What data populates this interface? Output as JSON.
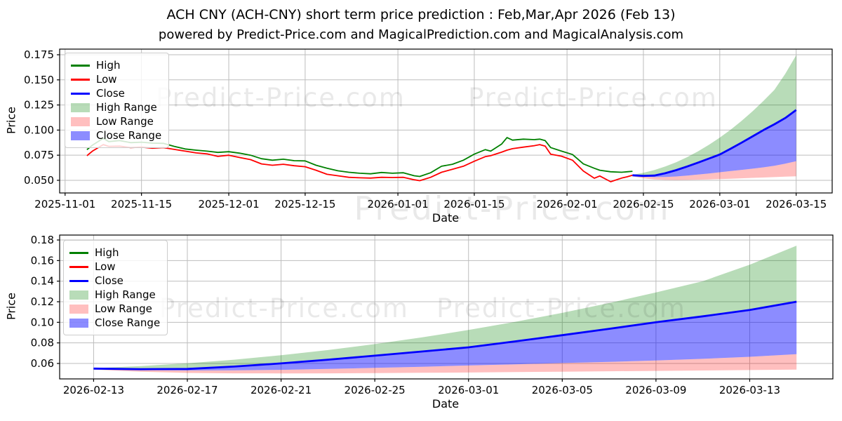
{
  "title": "ACH CNY (ACH-CNY) short term price prediction : Feb,Mar,Apr 2026 (Feb 13)",
  "subtitle": "powered by Predict-Price.com and MagicalPrediction.com and MagicalAnalysis.com",
  "watermark_text": "Predict-Price.com",
  "colors": {
    "high": "#008000",
    "low": "#ff0000",
    "close": "#0000ff",
    "high_range": "rgba(0,128,0,0.28)",
    "low_range": "rgba(255,0,0,0.25)",
    "close_range": "rgba(0,0,255,0.45)",
    "grid": "#bdbdbd",
    "spine": "#000000",
    "tick_text": "#000000",
    "watermark": "rgba(0,0,0,0.085)"
  },
  "legend": {
    "items": [
      {
        "label": "High",
        "swatch": "line",
        "color_key": "high"
      },
      {
        "label": "Low",
        "swatch": "line",
        "color_key": "low"
      },
      {
        "label": "Close",
        "swatch": "line",
        "color_key": "close"
      },
      {
        "label": "High Range",
        "swatch": "patch",
        "color_key": "high_range"
      },
      {
        "label": "Low Range",
        "swatch": "patch",
        "color_key": "low_range"
      },
      {
        "label": "Close Range",
        "swatch": "patch",
        "color_key": "close_range"
      }
    ]
  },
  "chart_data": [
    {
      "id": "top",
      "type": "line",
      "role": "price history with forecast fan",
      "xlabel": "Date",
      "ylabel": "Price",
      "x_unit": "days since 2025-11-01",
      "xlim": [
        -1.0,
        140.6
      ],
      "ylim": [
        0.0374,
        0.1806
      ],
      "grid": true,
      "x_ticks": {
        "labels": [
          "2025-11-01",
          "2025-11-15",
          "2025-12-01",
          "2025-12-15",
          "2026-01-01",
          "2026-01-15",
          "2026-02-01",
          "2026-02-15",
          "2026-03-01",
          "2026-03-15"
        ],
        "pos": [
          0,
          14,
          30,
          44,
          61,
          75,
          92,
          106,
          120,
          134
        ]
      },
      "y_ticks": {
        "labels": [
          "0.050",
          "0.075",
          "0.100",
          "0.125",
          "0.150",
          "0.175"
        ],
        "values": [
          0.05,
          0.075,
          0.1,
          0.125,
          0.15,
          0.175
        ]
      },
      "forecast_day_offset": 104,
      "series": {
        "high": {
          "name": "High",
          "days": [
            4,
            5,
            7,
            8,
            10,
            12,
            14,
            16,
            18,
            20,
            22,
            24,
            26,
            28,
            30,
            32,
            34,
            36,
            38,
            40,
            42,
            44,
            46,
            48,
            50,
            52,
            54,
            56,
            58,
            60,
            62,
            64,
            65,
            67,
            69,
            71,
            73,
            75,
            77,
            78,
            80,
            81,
            82,
            84,
            86,
            87,
            88,
            89,
            91,
            93,
            95,
            97,
            98,
            100,
            102,
            103,
            104
          ],
          "values": [
            0.0805,
            0.085,
            0.0918,
            0.0885,
            0.0895,
            0.0875,
            0.088,
            0.087,
            0.0868,
            0.0838,
            0.0812,
            0.08,
            0.079,
            0.0778,
            0.0785,
            0.077,
            0.075,
            0.0715,
            0.07,
            0.071,
            0.0695,
            0.0693,
            0.065,
            0.062,
            0.0595,
            0.058,
            0.057,
            0.0565,
            0.0578,
            0.057,
            0.0575,
            0.0545,
            0.0538,
            0.0575,
            0.064,
            0.066,
            0.07,
            0.076,
            0.0805,
            0.079,
            0.086,
            0.0925,
            0.09,
            0.091,
            0.0905,
            0.091,
            0.0895,
            0.0826,
            0.079,
            0.0757,
            0.0663,
            0.062,
            0.06,
            0.0585,
            0.058,
            0.0585,
            0.059
          ]
        },
        "low": {
          "name": "Low",
          "days": [
            4,
            5,
            7,
            8,
            10,
            12,
            14,
            16,
            18,
            20,
            22,
            24,
            26,
            28,
            30,
            32,
            34,
            36,
            38,
            40,
            42,
            44,
            46,
            48,
            50,
            52,
            54,
            56,
            58,
            60,
            62,
            64,
            65,
            67,
            69,
            71,
            73,
            75,
            77,
            78,
            80,
            81,
            82,
            84,
            86,
            87,
            88,
            89,
            91,
            93,
            95,
            97,
            98,
            100,
            102,
            103,
            104
          ],
          "values": [
            0.0745,
            0.079,
            0.0855,
            0.0838,
            0.084,
            0.0825,
            0.083,
            0.082,
            0.0825,
            0.0808,
            0.079,
            0.0773,
            0.0763,
            0.0738,
            0.075,
            0.0727,
            0.0706,
            0.0663,
            0.065,
            0.066,
            0.0645,
            0.0635,
            0.06,
            0.056,
            0.0545,
            0.053,
            0.0525,
            0.0522,
            0.053,
            0.0528,
            0.053,
            0.0505,
            0.0496,
            0.053,
            0.058,
            0.061,
            0.064,
            0.069,
            0.0735,
            0.0745,
            0.078,
            0.08,
            0.0815,
            0.083,
            0.0845,
            0.0855,
            0.084,
            0.076,
            0.074,
            0.07,
            0.0592,
            0.0521,
            0.0543,
            0.0486,
            0.0522,
            0.0535,
            0.055
          ]
        },
        "forecast": {
          "t": [
            0,
            2,
            4,
            6,
            8,
            10,
            12,
            14,
            16,
            18,
            20,
            22,
            24,
            26,
            28,
            30
          ],
          "close": [
            0.055,
            0.0544,
            0.0547,
            0.057,
            0.0601,
            0.0637,
            0.0676,
            0.0716,
            0.0757,
            0.0815,
            0.0875,
            0.0937,
            0.1,
            0.1058,
            0.112,
            0.12
          ],
          "high_top": [
            0.0555,
            0.0575,
            0.0602,
            0.0637,
            0.068,
            0.073,
            0.0788,
            0.0853,
            0.0925,
            0.1005,
            0.1092,
            0.1187,
            0.129,
            0.14,
            0.156,
            0.1745
          ],
          "close_bottom": [
            0.0545,
            0.0537,
            0.0532,
            0.0533,
            0.0538,
            0.0547,
            0.0557,
            0.0568,
            0.058,
            0.0592,
            0.0604,
            0.0616,
            0.0629,
            0.0645,
            0.0665,
            0.069
          ],
          "low_bottom": [
            0.054,
            0.052,
            0.0508,
            0.0504,
            0.0503,
            0.0504,
            0.0506,
            0.0509,
            0.0512,
            0.0516,
            0.052,
            0.0524,
            0.0528,
            0.0532,
            0.0536,
            0.054
          ]
        }
      }
    },
    {
      "id": "bottom",
      "type": "line",
      "role": "forecast detail Feb 13 - Mar 15 2026",
      "xlabel": "Date",
      "ylabel": "Price",
      "x_unit": "days since 2026-02-13",
      "xlim": [
        -1.45,
        31.55
      ],
      "ylim": [
        0.045,
        0.1848
      ],
      "grid": true,
      "x_ticks": {
        "labels": [
          "2026-02-13",
          "2026-02-17",
          "2026-02-21",
          "2026-02-25",
          "2026-03-01",
          "2026-03-05",
          "2026-03-09",
          "2026-03-13"
        ],
        "pos": [
          0,
          4,
          8,
          12,
          16,
          20,
          24,
          28
        ]
      },
      "y_ticks": {
        "labels": [
          "0.06",
          "0.08",
          "0.10",
          "0.12",
          "0.14",
          "0.16",
          "0.18"
        ],
        "values": [
          0.06,
          0.08,
          0.1,
          0.12,
          0.14,
          0.16,
          0.18
        ]
      },
      "forecast_day_offset": 0,
      "series": {
        "forecast": {
          "t": [
            0,
            2,
            4,
            6,
            8,
            10,
            12,
            14,
            16,
            18,
            20,
            22,
            24,
            26,
            28,
            30
          ],
          "close": [
            0.055,
            0.0544,
            0.0547,
            0.057,
            0.0601,
            0.0637,
            0.0676,
            0.0716,
            0.0757,
            0.0815,
            0.0875,
            0.0937,
            0.1,
            0.1058,
            0.112,
            0.12
          ],
          "high_top": [
            0.0555,
            0.0575,
            0.0602,
            0.0637,
            0.068,
            0.073,
            0.0788,
            0.0853,
            0.0925,
            0.1005,
            0.1092,
            0.1187,
            0.129,
            0.14,
            0.156,
            0.1745
          ],
          "close_bottom": [
            0.0545,
            0.0537,
            0.0532,
            0.0533,
            0.0538,
            0.0547,
            0.0557,
            0.0568,
            0.058,
            0.0592,
            0.0604,
            0.0616,
            0.0629,
            0.0645,
            0.0665,
            0.069
          ],
          "low_bottom": [
            0.054,
            0.052,
            0.0508,
            0.0504,
            0.0503,
            0.0504,
            0.0506,
            0.0509,
            0.0512,
            0.0516,
            0.052,
            0.0524,
            0.0528,
            0.0532,
            0.0536,
            0.054
          ]
        }
      }
    }
  ]
}
